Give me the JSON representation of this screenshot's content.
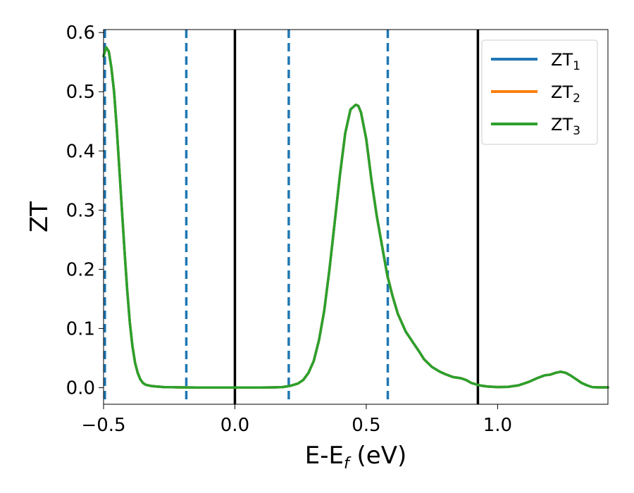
{
  "chart_data": {
    "type": "line",
    "xlabel_main": "E-E",
    "xlabel_sub": "f",
    "xlabel_unit": " (eV)",
    "ylabel": "ZT",
    "xlim": [
      -0.5,
      1.42
    ],
    "ylim": [
      -0.028,
      0.605
    ],
    "grid": false,
    "legend_position": "top-right",
    "x_ticks": [
      {
        "value": -0.5,
        "label": "−0.5"
      },
      {
        "value": 0.0,
        "label": "0.0"
      },
      {
        "value": 0.5,
        "label": "0.5"
      },
      {
        "value": 1.0,
        "label": "1.0"
      }
    ],
    "y_ticks": [
      {
        "value": 0.0,
        "label": "0.0"
      },
      {
        "value": 0.1,
        "label": "0.1"
      },
      {
        "value": 0.2,
        "label": "0.2"
      },
      {
        "value": 0.3,
        "label": "0.3"
      },
      {
        "value": 0.4,
        "label": "0.4"
      },
      {
        "value": 0.5,
        "label": "0.5"
      },
      {
        "value": 0.6,
        "label": "0.6"
      }
    ],
    "vlines_solid": [
      0.0,
      0.925
    ],
    "vlines_dashed": [
      -0.495,
      -0.185,
      0.205,
      0.582
    ],
    "series": [
      {
        "name": "ZT",
        "sub": "1",
        "color": "#1f77b4"
      },
      {
        "name": "ZT",
        "sub": "2",
        "color": "#ff7f0e"
      },
      {
        "name": "ZT",
        "sub": "3",
        "color": "#2ca02c"
      }
    ],
    "x": [
      -0.5,
      -0.49,
      -0.48,
      -0.47,
      -0.46,
      -0.45,
      -0.44,
      -0.43,
      -0.42,
      -0.41,
      -0.4,
      -0.39,
      -0.38,
      -0.37,
      -0.36,
      -0.35,
      -0.34,
      -0.32,
      -0.3,
      -0.27,
      -0.24,
      -0.2,
      -0.15,
      -0.1,
      -0.05,
      0.0,
      0.05,
      0.1,
      0.15,
      0.18,
      0.21,
      0.24,
      0.26,
      0.28,
      0.3,
      0.32,
      0.34,
      0.36,
      0.38,
      0.4,
      0.42,
      0.44,
      0.46,
      0.47,
      0.48,
      0.5,
      0.52,
      0.54,
      0.56,
      0.58,
      0.6,
      0.62,
      0.65,
      0.68,
      0.7,
      0.72,
      0.75,
      0.78,
      0.8,
      0.83,
      0.86,
      0.88,
      0.9,
      0.93,
      0.96,
      1.0,
      1.04,
      1.08,
      1.12,
      1.15,
      1.18,
      1.2,
      1.22,
      1.24,
      1.26,
      1.28,
      1.3,
      1.32,
      1.34,
      1.36,
      1.38,
      1.4,
      1.42
    ],
    "y": [
      0.56,
      0.575,
      0.568,
      0.54,
      0.5,
      0.44,
      0.37,
      0.3,
      0.23,
      0.165,
      0.11,
      0.07,
      0.042,
      0.025,
      0.014,
      0.008,
      0.005,
      0.003,
      0.002,
      0.001,
      0.0008,
      0.0005,
      0.0003,
      0.0002,
      0.0002,
      0.0002,
      0.0002,
      0.0003,
      0.0006,
      0.001,
      0.003,
      0.007,
      0.013,
      0.025,
      0.045,
      0.08,
      0.13,
      0.2,
      0.28,
      0.36,
      0.43,
      0.47,
      0.478,
      0.476,
      0.465,
      0.42,
      0.35,
      0.29,
      0.24,
      0.19,
      0.155,
      0.125,
      0.095,
      0.075,
      0.062,
      0.048,
      0.035,
      0.027,
      0.023,
      0.018,
      0.016,
      0.013,
      0.008,
      0.004,
      0.002,
      0.001,
      0.0015,
      0.004,
      0.01,
      0.016,
      0.021,
      0.022,
      0.025,
      0.027,
      0.025,
      0.02,
      0.014,
      0.008,
      0.004,
      0.001,
      0.0005,
      0.0005,
      0.0005
    ]
  }
}
